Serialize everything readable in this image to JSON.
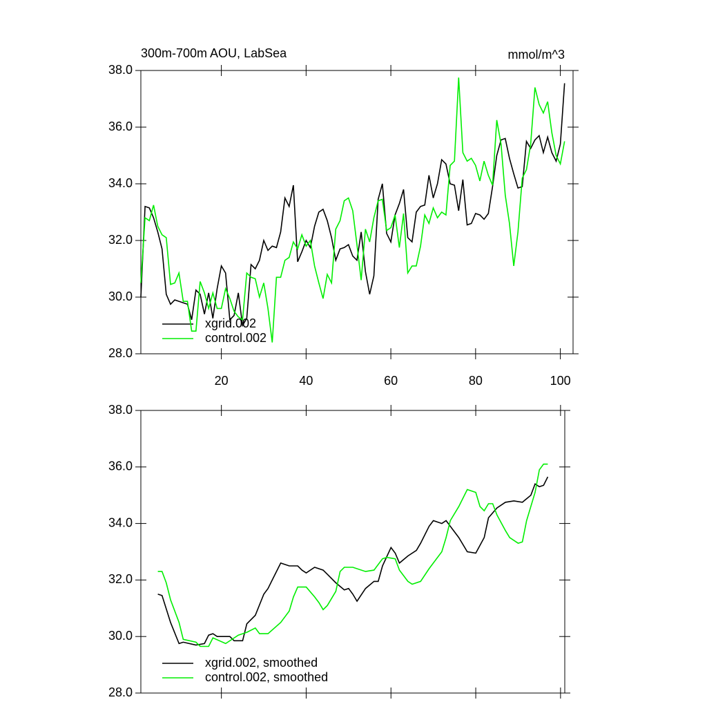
{
  "chart_data": [
    {
      "type": "line",
      "title": "300m-700m AOU, LabSea",
      "units_label": "mmol/m^3",
      "x": [
        1,
        2,
        3,
        4,
        5,
        6,
        7,
        8,
        9,
        10,
        11,
        12,
        13,
        14,
        15,
        16,
        17,
        18,
        19,
        20,
        21,
        22,
        23,
        24,
        25,
        26,
        27,
        28,
        29,
        30,
        31,
        32,
        33,
        34,
        35,
        36,
        37,
        38,
        39,
        40,
        41,
        42,
        43,
        44,
        45,
        46,
        47,
        48,
        49,
        50,
        51,
        52,
        53,
        54,
        55,
        56,
        57,
        58,
        59,
        60,
        61,
        62,
        63,
        64,
        65,
        66,
        67,
        68,
        69,
        70,
        71,
        72,
        73,
        74,
        75,
        76,
        77,
        78,
        79,
        80,
        81,
        82,
        83,
        84,
        85,
        86,
        87,
        88,
        89,
        90,
        91,
        92,
        93,
        94,
        95,
        96,
        97,
        98,
        99,
        100,
        101
      ],
      "series": [
        {
          "name": "xgrid.002",
          "color": "#000000",
          "values": [
            30.0,
            33.2,
            33.15,
            32.8,
            32.3,
            31.7,
            30.1,
            29.75,
            29.9,
            29.85,
            29.8,
            29.75,
            29.2,
            30.25,
            30.1,
            29.4,
            30.15,
            29.25,
            30.3,
            31.1,
            30.85,
            29.2,
            29.35,
            30.15,
            29.0,
            29.25,
            31.15,
            31.0,
            31.3,
            32.0,
            31.65,
            31.8,
            31.75,
            32.3,
            33.5,
            33.2,
            33.95,
            31.25,
            31.6,
            32.0,
            31.75,
            32.5,
            33.0,
            33.1,
            32.7,
            32.1,
            31.3,
            31.7,
            31.75,
            31.85,
            31.45,
            31.3,
            32.3,
            30.9,
            30.1,
            30.75,
            33.45,
            34.0,
            32.25,
            31.95,
            32.9,
            33.3,
            33.8,
            32.1,
            31.95,
            33.0,
            33.2,
            33.25,
            34.3,
            33.5,
            34.0,
            34.85,
            34.7,
            34.0,
            33.95,
            33.05,
            34.15,
            32.55,
            32.6,
            32.95,
            32.9,
            32.75,
            32.95,
            33.9,
            35.0,
            35.55,
            35.6,
            34.9,
            34.35,
            33.85,
            33.9,
            35.5,
            35.25,
            35.55,
            35.7,
            35.1,
            35.65,
            35.1,
            34.8,
            35.4,
            37.55
          ]
        },
        {
          "name": "control.002",
          "color": "#00ee00",
          "values": [
            30.5,
            32.8,
            32.7,
            33.25,
            32.5,
            32.2,
            32.1,
            30.45,
            30.5,
            30.85,
            29.85,
            29.85,
            28.8,
            28.8,
            30.55,
            30.15,
            29.6,
            30.15,
            29.6,
            29.6,
            30.3,
            29.95,
            29.5,
            29.3,
            29.2,
            30.85,
            30.7,
            30.65,
            30.0,
            30.5,
            29.6,
            28.4,
            30.7,
            30.7,
            31.3,
            31.4,
            31.95,
            31.7,
            32.2,
            31.8,
            32.0,
            31.1,
            30.5,
            29.95,
            30.8,
            30.5,
            32.4,
            32.7,
            33.4,
            33.5,
            33.05,
            31.85,
            30.6,
            32.4,
            31.95,
            32.8,
            33.4,
            33.45,
            32.35,
            32.45,
            32.9,
            31.75,
            32.95,
            30.85,
            31.1,
            31.1,
            31.8,
            32.9,
            32.6,
            33.15,
            32.8,
            33.0,
            32.9,
            34.65,
            34.8,
            37.75,
            35.1,
            34.8,
            34.9,
            34.65,
            34.1,
            34.8,
            34.3,
            33.95,
            36.25,
            35.4,
            33.6,
            32.6,
            31.1,
            32.3,
            34.2,
            34.5,
            35.4,
            37.4,
            36.8,
            36.5,
            36.9,
            35.8,
            35.0,
            34.7,
            35.5
          ]
        }
      ],
      "xlim": [
        1,
        103
      ],
      "xticks": [
        20,
        40,
        60,
        80,
        100
      ],
      "xtick_labels": true,
      "ylim": [
        28,
        38
      ],
      "yticks": [
        {
          "value": 28,
          "label": "28.0"
        },
        {
          "value": 30,
          "label": "30.0"
        },
        {
          "value": 32,
          "label": "32.0"
        },
        {
          "value": 34,
          "label": "34.0"
        },
        {
          "value": 36,
          "label": "36.0"
        },
        {
          "value": 38,
          "label": "38.0"
        }
      ],
      "legend": "lower left"
    },
    {
      "type": "line",
      "series": [
        {
          "name": "xgrid.002, smoothed",
          "color": "#000000",
          "x": [
            5,
            6,
            8,
            10,
            11,
            14,
            16,
            17,
            18,
            19,
            22,
            23,
            25,
            26,
            28,
            30,
            31,
            32,
            34,
            36,
            38,
            39,
            40,
            42,
            44,
            45,
            47,
            49,
            50,
            51,
            52,
            54,
            56,
            57,
            58,
            60,
            61,
            62,
            64,
            66,
            67,
            69,
            70,
            72,
            73,
            76,
            78,
            80,
            82,
            83,
            85,
            87,
            89,
            91,
            93,
            94,
            95,
            96,
            97
          ],
          "values": [
            31.5,
            31.45,
            30.5,
            29.75,
            29.8,
            29.7,
            29.75,
            30.05,
            30.1,
            30.0,
            30.0,
            29.85,
            29.85,
            30.45,
            30.75,
            31.5,
            31.7,
            32.0,
            32.6,
            32.5,
            32.5,
            32.35,
            32.25,
            32.45,
            32.35,
            32.2,
            31.9,
            31.65,
            31.7,
            31.5,
            31.25,
            31.7,
            31.95,
            31.95,
            32.5,
            33.15,
            32.95,
            32.6,
            32.85,
            33.05,
            33.3,
            33.9,
            34.1,
            34.0,
            34.1,
            33.5,
            33.0,
            32.95,
            33.5,
            34.2,
            34.55,
            34.75,
            34.8,
            34.75,
            35.0,
            35.4,
            35.3,
            35.35,
            35.65
          ]
        },
        {
          "name": "control.002, smoothed",
          "color": "#00ee00",
          "x": [
            5,
            6,
            7,
            8,
            10,
            11,
            14,
            15,
            17,
            18,
            21,
            24,
            26,
            28,
            29,
            31,
            34,
            36,
            37,
            38,
            40,
            42,
            43,
            44,
            45,
            47,
            48,
            49,
            51,
            54,
            56,
            58,
            59,
            61,
            62,
            64,
            65,
            67,
            69,
            72,
            73,
            74,
            76,
            78,
            80,
            81,
            82,
            83,
            84,
            85,
            87,
            88,
            90,
            91,
            92,
            94,
            95,
            96,
            97
          ],
          "values": [
            32.3,
            32.3,
            31.9,
            31.3,
            30.5,
            29.9,
            29.8,
            29.65,
            29.65,
            29.95,
            29.75,
            30.05,
            30.15,
            30.3,
            30.1,
            30.1,
            30.5,
            30.9,
            31.4,
            31.75,
            31.75,
            31.4,
            31.2,
            30.95,
            31.1,
            31.6,
            32.3,
            32.45,
            32.45,
            32.3,
            32.35,
            32.75,
            32.8,
            32.75,
            32.35,
            31.95,
            31.85,
            31.95,
            32.4,
            33.0,
            33.5,
            34.1,
            34.6,
            35.2,
            35.1,
            34.6,
            34.45,
            34.7,
            34.7,
            34.3,
            33.75,
            33.5,
            33.3,
            33.35,
            34.1,
            35.1,
            35.9,
            36.1,
            36.1
          ]
        }
      ],
      "xlim": [
        1,
        101
      ],
      "xticks": [
        20,
        40,
        60,
        80,
        100
      ],
      "xtick_labels": false,
      "ylim": [
        28,
        38
      ],
      "yticks": [
        {
          "value": 28,
          "label": "28.0"
        },
        {
          "value": 30,
          "label": "30.0"
        },
        {
          "value": 32,
          "label": "32.0"
        },
        {
          "value": 34,
          "label": "34.0"
        },
        {
          "value": 36,
          "label": "36.0"
        },
        {
          "value": 38,
          "label": "38.0"
        }
      ],
      "legend": "lower left"
    }
  ]
}
